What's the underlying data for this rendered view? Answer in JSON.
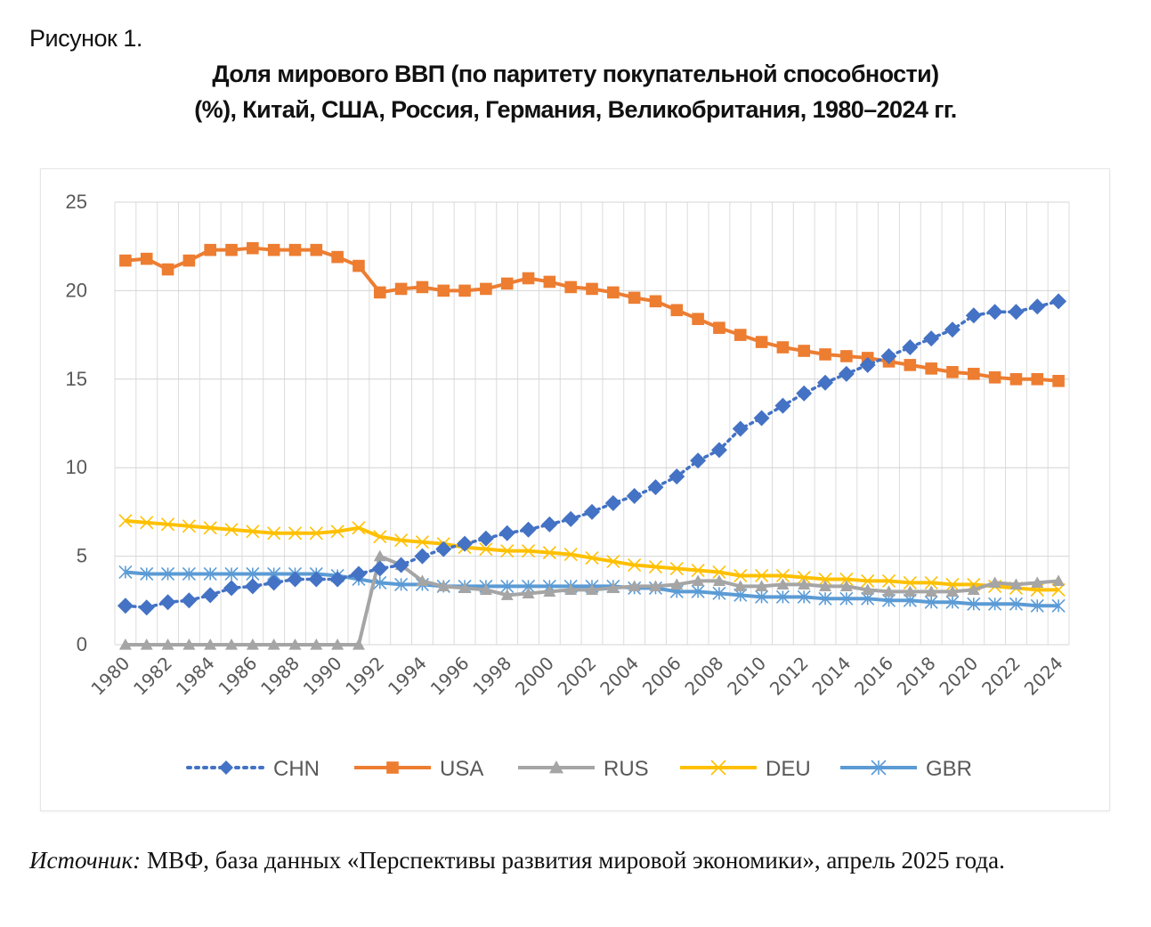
{
  "figure_label": "Рисунок 1.",
  "title_line1": "Доля мирового ВВП (по паритету покупательной способности)",
  "title_line2": "(%), Китай, США, Россия, Германия, Великобритания, 1980–2024 гг.",
  "source": {
    "label": "Источник:",
    "text": " МВФ, база данных «Перспективы развития мировой экономики», апрель 2025 года."
  },
  "chart_data": {
    "type": "line",
    "title": "Доля мирового ВВП (по паритету покупательной способности) (%), Китай, США, Россия, Германия, Великобритания, 1980–2024 гг.",
    "xlabel": "",
    "ylabel": "",
    "ylim": [
      0,
      25
    ],
    "yticks": [
      0,
      5,
      10,
      15,
      20,
      25
    ],
    "x": [
      1980,
      1981,
      1982,
      1983,
      1984,
      1985,
      1986,
      1987,
      1988,
      1989,
      1990,
      1991,
      1992,
      1993,
      1994,
      1995,
      1996,
      1997,
      1998,
      1999,
      2000,
      2001,
      2002,
      2003,
      2004,
      2005,
      2006,
      2007,
      2008,
      2009,
      2010,
      2011,
      2012,
      2013,
      2014,
      2015,
      2016,
      2017,
      2018,
      2019,
      2020,
      2021,
      2022,
      2023,
      2024
    ],
    "xtick_labels": [
      "1980",
      "1982",
      "1984",
      "1986",
      "1988",
      "1990",
      "1992",
      "1994",
      "1996",
      "1998",
      "2000",
      "2002",
      "2004",
      "2006",
      "2008",
      "2010",
      "2012",
      "2014",
      "2016",
      "2018",
      "2020",
      "2022",
      "2024"
    ],
    "grid": true,
    "legend_position": "bottom",
    "series": [
      {
        "name": "CHN",
        "color": "#4472c4",
        "marker": "diamond",
        "line": "dotted",
        "values": [
          2.2,
          2.1,
          2.4,
          2.5,
          2.8,
          3.2,
          3.3,
          3.5,
          3.7,
          3.7,
          3.7,
          4.0,
          4.3,
          4.5,
          5.0,
          5.4,
          5.7,
          6.0,
          6.3,
          6.5,
          6.8,
          7.1,
          7.5,
          8.0,
          8.4,
          8.9,
          9.5,
          10.4,
          11.0,
          12.2,
          12.8,
          13.5,
          14.2,
          14.8,
          15.3,
          15.8,
          16.3,
          16.8,
          17.3,
          17.8,
          18.6,
          18.8,
          18.8,
          19.1,
          19.4
        ]
      },
      {
        "name": "USA",
        "color": "#ed7d31",
        "marker": "square",
        "line": "solid",
        "values": [
          21.7,
          21.8,
          21.2,
          21.7,
          22.3,
          22.3,
          22.4,
          22.3,
          22.3,
          22.3,
          21.9,
          21.4,
          19.9,
          20.1,
          20.2,
          20.0,
          20.0,
          20.1,
          20.4,
          20.7,
          20.5,
          20.2,
          20.1,
          19.9,
          19.6,
          19.4,
          18.9,
          18.4,
          17.9,
          17.5,
          17.1,
          16.8,
          16.6,
          16.4,
          16.3,
          16.2,
          16.0,
          15.8,
          15.6,
          15.4,
          15.3,
          15.1,
          15.0,
          15.0,
          14.9
        ]
      },
      {
        "name": "RUS",
        "color": "#a5a5a5",
        "marker": "triangle",
        "line": "solid",
        "values": [
          0,
          0,
          0,
          0,
          0,
          0,
          0,
          0,
          0,
          0,
          0,
          0,
          5.0,
          4.5,
          3.6,
          3.3,
          3.2,
          3.1,
          2.8,
          2.9,
          3.0,
          3.1,
          3.1,
          3.2,
          3.3,
          3.3,
          3.4,
          3.6,
          3.6,
          3.3,
          3.3,
          3.4,
          3.4,
          3.3,
          3.3,
          3.1,
          3.0,
          3.0,
          3.0,
          3.0,
          3.1,
          3.5,
          3.4,
          3.5,
          3.6
        ]
      },
      {
        "name": "DEU",
        "color": "#ffc000",
        "marker": "x",
        "line": "solid",
        "values": [
          7.0,
          6.9,
          6.8,
          6.7,
          6.6,
          6.5,
          6.4,
          6.3,
          6.3,
          6.3,
          6.4,
          6.6,
          6.1,
          5.9,
          5.8,
          5.7,
          5.5,
          5.4,
          5.3,
          5.3,
          5.2,
          5.1,
          4.9,
          4.7,
          4.5,
          4.4,
          4.3,
          4.2,
          4.1,
          3.9,
          3.9,
          3.9,
          3.8,
          3.7,
          3.7,
          3.6,
          3.6,
          3.5,
          3.5,
          3.4,
          3.4,
          3.3,
          3.2,
          3.1,
          3.1
        ]
      },
      {
        "name": "GBR",
        "color": "#5b9bd5",
        "marker": "asterisk",
        "line": "solid",
        "values": [
          4.1,
          4.0,
          4.0,
          4.0,
          4.0,
          4.0,
          4.0,
          4.0,
          4.0,
          4.0,
          3.9,
          3.7,
          3.5,
          3.4,
          3.4,
          3.3,
          3.3,
          3.3,
          3.3,
          3.3,
          3.3,
          3.3,
          3.3,
          3.3,
          3.2,
          3.2,
          3.0,
          3.0,
          2.9,
          2.8,
          2.7,
          2.7,
          2.7,
          2.6,
          2.6,
          2.6,
          2.5,
          2.5,
          2.4,
          2.4,
          2.3,
          2.3,
          2.3,
          2.2,
          2.2
        ]
      }
    ]
  }
}
